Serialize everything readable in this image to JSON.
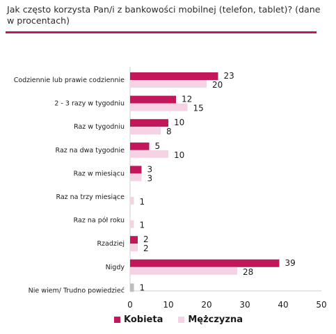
{
  "chart_data": {
    "type": "bar",
    "orientation": "horizontal",
    "title": "Jak często korzysta Pan/i z bankowości mobilnej (telefon, tablet)? (dane w procentach)",
    "categories": [
      "Codziennie lub prawie codziennie",
      "2 - 3 razy w tygodniu",
      "Raz w tygodniu",
      "Raz na dwa tygodnie",
      "Raz w miesiącu",
      "Raz na trzy miesiące",
      "Raz na pół roku",
      "Rzadziej",
      "Nigdy",
      "Nie wiem/ Trudno powiedzieć"
    ],
    "series": [
      {
        "name": "Kobieta",
        "color": "#c2185b",
        "values": [
          23,
          12,
          10,
          5,
          3,
          null,
          null,
          2,
          39,
          null
        ]
      },
      {
        "name": "Mężczyzna",
        "color": "#f6d3e4",
        "values": [
          20,
          15,
          8,
          10,
          3,
          1,
          1,
          2,
          28,
          null
        ]
      }
    ],
    "extra_series_note_color": "#bdbdbd",
    "unknown_combined": [
      null,
      null,
      null,
      null,
      null,
      null,
      null,
      null,
      null,
      1
    ],
    "xlim": [
      0,
      50
    ],
    "xticks": [
      0,
      10,
      20,
      30,
      40,
      50
    ],
    "legend_position": "bottom",
    "legend": [
      "Kobieta",
      "Mężczyzna"
    ]
  }
}
